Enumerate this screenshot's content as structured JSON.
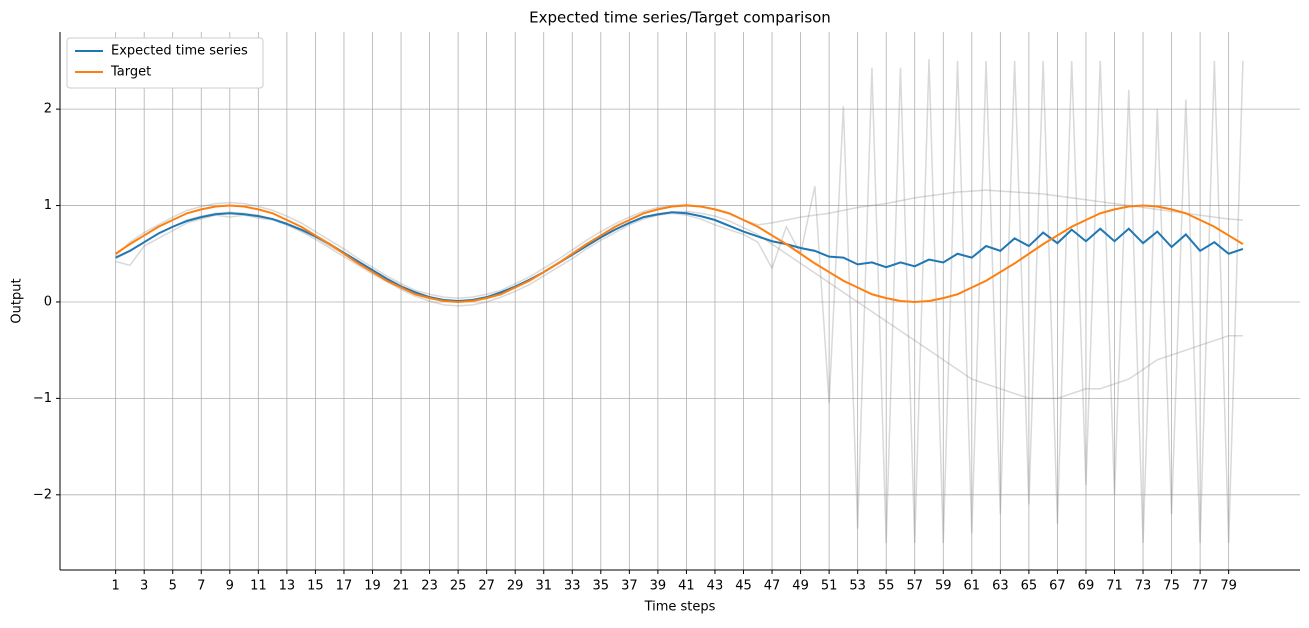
{
  "chart_data": {
    "type": "line",
    "title": "Expected time series/Target comparison",
    "x_label": "Time steps",
    "y_label": "Output",
    "x": [
      1,
      2,
      3,
      4,
      5,
      6,
      7,
      8,
      9,
      10,
      11,
      12,
      13,
      14,
      15,
      16,
      17,
      18,
      19,
      20,
      21,
      22,
      23,
      24,
      25,
      26,
      27,
      28,
      29,
      30,
      31,
      32,
      33,
      34,
      35,
      36,
      37,
      38,
      39,
      40,
      41,
      42,
      43,
      44,
      45,
      46,
      47,
      48,
      49,
      50,
      51,
      52,
      53,
      54,
      55,
      56,
      57,
      58,
      59,
      60,
      61,
      62,
      63,
      64,
      65,
      66,
      67,
      68,
      69,
      70,
      71,
      72,
      73,
      74,
      75,
      76,
      77,
      78,
      79,
      80
    ],
    "series": [
      {
        "color": "rgba(128,128,128,0.3)",
        "values": [
          0.42,
          0.38,
          0.58,
          0.66,
          0.74,
          0.82,
          0.86,
          0.9,
          0.88,
          0.9,
          0.87,
          0.85,
          0.8,
          0.74,
          0.67,
          0.58,
          0.5,
          0.42,
          0.33,
          0.25,
          0.17,
          0.1,
          0.05,
          0.02,
          0.01,
          0.02,
          0.05,
          0.1,
          0.16,
          0.23,
          0.31,
          0.4,
          0.49,
          0.58,
          0.67,
          0.75,
          0.82,
          0.88,
          0.9,
          0.92,
          0.9,
          0.86,
          0.8,
          0.75,
          0.7,
          0.62,
          0.35,
          0.78,
          0.5,
          1.2,
          -1.05,
          2.03,
          -2.35,
          2.43,
          -2.5,
          2.43,
          -2.5,
          2.52,
          -2.5,
          2.5,
          -2.4,
          2.5,
          -2.2,
          2.5,
          -2.1,
          2.5,
          -2.3,
          2.5,
          -1.9,
          2.5,
          -2.0,
          2.2,
          -2.5,
          2.0,
          -2.2,
          2.1,
          -2.5,
          2.5,
          -2.5,
          2.5
        ]
      },
      {
        "color": "rgba(128,128,128,0.3)",
        "values": [
          0.45,
          0.53,
          0.62,
          0.71,
          0.78,
          0.85,
          0.89,
          0.92,
          0.93,
          0.92,
          0.9,
          0.86,
          0.8,
          0.73,
          0.65,
          0.56,
          0.47,
          0.38,
          0.29,
          0.21,
          0.13,
          0.06,
          0.01,
          -0.03,
          -0.04,
          -0.03,
          0,
          0.05,
          0.11,
          0.18,
          0.27,
          0.36,
          0.45,
          0.55,
          0.64,
          0.72,
          0.8,
          0.86,
          0.9,
          0.93,
          0.94,
          0.92,
          0.89,
          0.84,
          0.77,
          0.7,
          0.6,
          0.5,
          0.4,
          0.3,
          0.2,
          0.1,
          0,
          -0.1,
          -0.2,
          -0.3,
          -0.4,
          -0.5,
          -0.6,
          -0.7,
          -0.8,
          -0.85,
          -0.9,
          -0.95,
          -1.0,
          -1.0,
          -1.0,
          -0.95,
          -0.9,
          -0.9,
          -0.85,
          -0.8,
          -0.7,
          -0.6,
          -0.55,
          -0.5,
          -0.45,
          -0.4,
          -0.35,
          -0.35
        ]
      },
      {
        "color": "rgba(128,128,128,0.3)",
        "values": [
          0.48,
          0.62,
          0.72,
          0.8,
          0.88,
          0.95,
          0.99,
          1.02,
          1.03,
          1.02,
          0.99,
          0.95,
          0.89,
          0.82,
          0.73,
          0.64,
          0.55,
          0.45,
          0.36,
          0.27,
          0.19,
          0.12,
          0.08,
          0.05,
          0.04,
          0.05,
          0.08,
          0.12,
          0.19,
          0.26,
          0.35,
          0.44,
          0.54,
          0.64,
          0.73,
          0.81,
          0.88,
          0.94,
          0.98,
          1.0,
          1.01,
          0.99,
          0.96,
          0.91,
          0.85,
          0.8,
          0.82,
          0.85,
          0.88,
          0.9,
          0.92,
          0.95,
          0.98,
          1.0,
          1.02,
          1.05,
          1.08,
          1.1,
          1.12,
          1.14,
          1.15,
          1.16,
          1.15,
          1.14,
          1.13,
          1.12,
          1.1,
          1.08,
          1.06,
          1.04,
          1.02,
          1.0,
          0.98,
          0.96,
          0.94,
          0.92,
          0.9,
          0.88,
          0.86,
          0.85
        ]
      },
      {
        "name": "Expected time series",
        "color": "#1f77b4",
        "values": [
          0.46,
          0.53,
          0.62,
          0.71,
          0.78,
          0.84,
          0.88,
          0.91,
          0.92,
          0.91,
          0.89,
          0.86,
          0.81,
          0.75,
          0.68,
          0.6,
          0.51,
          0.42,
          0.33,
          0.24,
          0.16,
          0.1,
          0.05,
          0.02,
          0.01,
          0.02,
          0.05,
          0.1,
          0.16,
          0.23,
          0.31,
          0.4,
          0.49,
          0.58,
          0.67,
          0.75,
          0.82,
          0.88,
          0.91,
          0.93,
          0.92,
          0.89,
          0.85,
          0.79,
          0.73,
          0.68,
          0.63,
          0.6,
          0.56,
          0.53,
          0.47,
          0.46,
          0.39,
          0.41,
          0.36,
          0.41,
          0.37,
          0.44,
          0.41,
          0.5,
          0.46,
          0.58,
          0.53,
          0.66,
          0.58,
          0.72,
          0.61,
          0.75,
          0.63,
          0.76,
          0.63,
          0.76,
          0.61,
          0.73,
          0.57,
          0.7,
          0.53,
          0.62,
          0.5,
          0.55
        ]
      },
      {
        "name": "Target",
        "color": "#ff7f0e",
        "values": [
          0.5,
          0.6,
          0.69,
          0.78,
          0.85,
          0.92,
          0.96,
          0.99,
          1.0,
          0.99,
          0.96,
          0.92,
          0.85,
          0.78,
          0.69,
          0.6,
          0.5,
          0.4,
          0.31,
          0.22,
          0.15,
          0.08,
          0.04,
          0.01,
          0,
          0.01,
          0.04,
          0.08,
          0.15,
          0.22,
          0.31,
          0.4,
          0.5,
          0.6,
          0.69,
          0.78,
          0.85,
          0.92,
          0.96,
          0.99,
          1.0,
          0.99,
          0.96,
          0.92,
          0.85,
          0.78,
          0.69,
          0.6,
          0.5,
          0.4,
          0.31,
          0.22,
          0.15,
          0.08,
          0.04,
          0.01,
          0,
          0.01,
          0.04,
          0.08,
          0.15,
          0.22,
          0.31,
          0.4,
          0.5,
          0.6,
          0.69,
          0.78,
          0.85,
          0.92,
          0.96,
          0.99,
          1.0,
          0.99,
          0.96,
          0.92,
          0.85,
          0.78,
          0.69,
          0.6
        ]
      }
    ],
    "xlim": [
      -2.9,
      84
    ],
    "ylim": [
      -2.78,
      2.8
    ],
    "xticks": [
      1,
      3,
      5,
      7,
      9,
      11,
      13,
      15,
      17,
      19,
      21,
      23,
      25,
      27,
      29,
      31,
      33,
      35,
      37,
      39,
      41,
      43,
      45,
      47,
      49,
      51,
      53,
      55,
      57,
      59,
      61,
      63,
      65,
      67,
      69,
      71,
      73,
      75,
      77,
      79
    ],
    "yticks": [
      {
        "value": -2,
        "label": "−2"
      },
      {
        "value": -1,
        "label": "−1"
      },
      0,
      1,
      2
    ],
    "grid": true,
    "legend": "upper-left"
  }
}
